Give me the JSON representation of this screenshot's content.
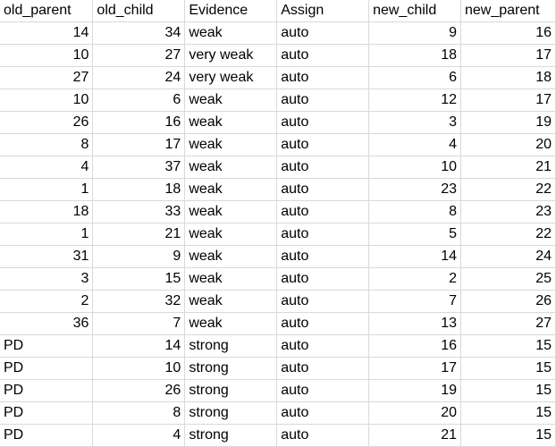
{
  "headers": [
    "old_parent",
    "old_child",
    "Evidence",
    "Assign",
    "new_child",
    "new_parent"
  ],
  "rows": [
    [
      "14",
      "34",
      "weak",
      "auto",
      "9",
      "16"
    ],
    [
      "10",
      "27",
      "very weak",
      "auto",
      "18",
      "17"
    ],
    [
      "27",
      "24",
      "very weak",
      "auto",
      "6",
      "18"
    ],
    [
      "10",
      "6",
      "weak",
      "auto",
      "12",
      "17"
    ],
    [
      "26",
      "16",
      "weak",
      "auto",
      "3",
      "19"
    ],
    [
      "8",
      "17",
      "weak",
      "auto",
      "4",
      "20"
    ],
    [
      "4",
      "37",
      "weak",
      "auto",
      "10",
      "21"
    ],
    [
      "1",
      "18",
      "weak",
      "auto",
      "23",
      "22"
    ],
    [
      "18",
      "33",
      "weak",
      "auto",
      "8",
      "23"
    ],
    [
      "1",
      "21",
      "weak",
      "auto",
      "5",
      "22"
    ],
    [
      "31",
      "9",
      "weak",
      "auto",
      "14",
      "24"
    ],
    [
      "3",
      "15",
      "weak",
      "auto",
      "2",
      "25"
    ],
    [
      "2",
      "32",
      "weak",
      "auto",
      "7",
      "26"
    ],
    [
      "36",
      "7",
      "weak",
      "auto",
      "13",
      "27"
    ],
    [
      "PD",
      "14",
      "strong",
      "auto",
      "16",
      "15"
    ],
    [
      "PD",
      "10",
      "strong",
      "auto",
      "17",
      "15"
    ],
    [
      "PD",
      "26",
      "strong",
      "auto",
      "19",
      "15"
    ],
    [
      "PD",
      "8",
      "strong",
      "auto",
      "20",
      "15"
    ],
    [
      "PD",
      "4",
      "strong",
      "auto",
      "21",
      "15"
    ]
  ]
}
